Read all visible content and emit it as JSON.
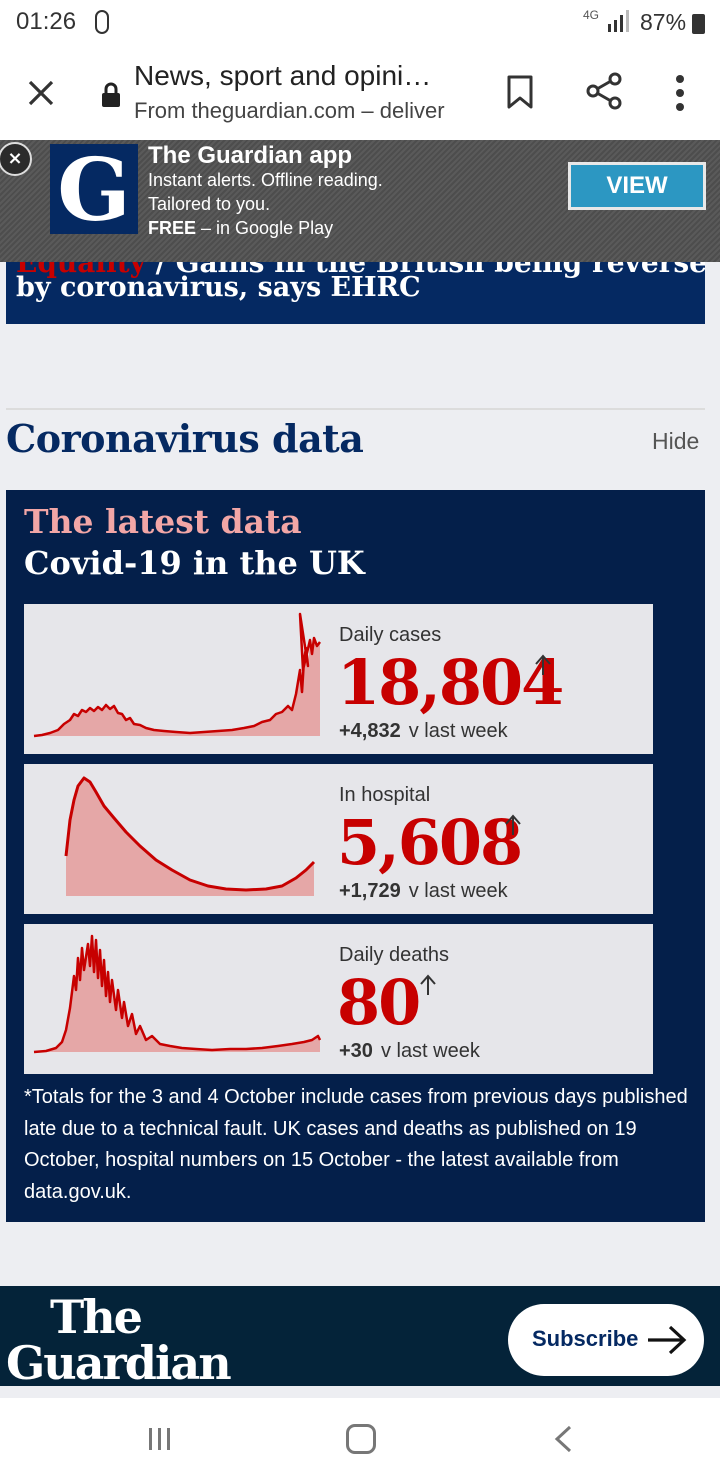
{
  "status_bar": {
    "time": "01:26",
    "network": "4G",
    "battery": "87%"
  },
  "browser": {
    "page_title": "News, sport and opini…",
    "url": "From theguardian.com – deliver"
  },
  "app_banner": {
    "title": "The Guardian app",
    "line1": "Instant alerts. Offline reading.",
    "line2": "Tailored to you.",
    "line3_bold": "FREE",
    "line3_rest": " – in Google Play",
    "view_label": "VIEW",
    "logo_letter": "G"
  },
  "headline": {
    "cut_part_a": "Equality",
    "cut_part_b": " / Gains in the British being reversed",
    "line2": "by coronavirus, says EHRC"
  },
  "section": {
    "title": "Coronavirus data",
    "hide_label": "Hide"
  },
  "panel": {
    "kicker": "The latest data",
    "subtitle": "Covid-19 in the UK",
    "cards": [
      {
        "label": "Daily cases",
        "value": "18,804",
        "delta": "+4,832",
        "delta_suffix": "v last week"
      },
      {
        "label": "In hospital",
        "value": "5,608",
        "delta": "+1,729",
        "delta_suffix": "v last week"
      },
      {
        "label": "Daily deaths",
        "value": "80",
        "delta": "+30",
        "delta_suffix": "v last week"
      }
    ],
    "footnote": "*Totals for the 3 and 4 October include cases from previous days published late due to a technical fault. UK cases and deaths as published on 19 October, hospital numbers on 15 October - the latest available from data.gov.uk."
  },
  "footer": {
    "brand_line1": "The",
    "brand_line2": "Guardian",
    "subscribe_label": "Subscribe"
  },
  "colors": {
    "guardian_blue": "#052962",
    "guardian_red": "#c70000",
    "chart_fill": "#e5a7a7",
    "panel_bg": "#041f4a"
  }
}
